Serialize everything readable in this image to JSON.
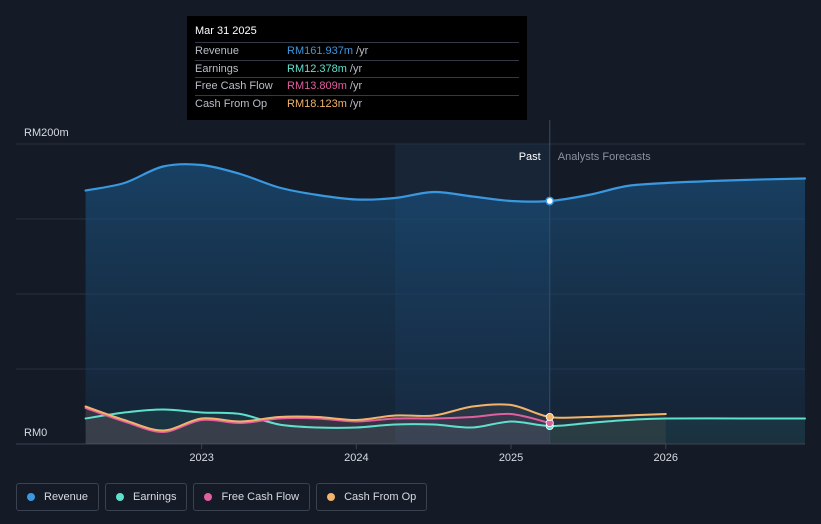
{
  "tooltip": {
    "date": "Mar 31 2025",
    "rows": [
      {
        "label": "Revenue",
        "value": "RM161.937m",
        "unit": "/yr",
        "color": "#3a98e0"
      },
      {
        "label": "Earnings",
        "value": "RM12.378m",
        "unit": "/yr",
        "color": "#5ee0cc"
      },
      {
        "label": "Free Cash Flow",
        "value": "RM13.809m",
        "unit": "/yr",
        "color": "#e05fa0"
      },
      {
        "label": "Cash From Op",
        "value": "RM18.123m",
        "unit": "/yr",
        "color": "#f2b46a"
      }
    ]
  },
  "period_labels": {
    "past": "Past",
    "forecast": "Analysts Forecasts"
  },
  "chart_data": {
    "type": "line",
    "y_axis": {
      "max_label": "RM200m",
      "min_label": "RM0",
      "ylim": [
        0,
        200
      ]
    },
    "x_ticks": [
      {
        "label": "2023",
        "x": 2023.0
      },
      {
        "label": "2024",
        "x": 2024.0
      },
      {
        "label": "2025",
        "x": 2025.0
      },
      {
        "label": "2026",
        "x": 2026.0
      }
    ],
    "xlim": [
      2021.8,
      2026.9
    ],
    "past_end": 2025.25,
    "shaded_start": 2024.25,
    "series": [
      {
        "name": "Revenue",
        "color": "#3a98e0",
        "fill": true,
        "points": [
          [
            2022.25,
            169
          ],
          [
            2022.5,
            174
          ],
          [
            2022.75,
            185
          ],
          [
            2023.0,
            186
          ],
          [
            2023.25,
            180
          ],
          [
            2023.5,
            171
          ],
          [
            2023.75,
            166
          ],
          [
            2024.0,
            163
          ],
          [
            2024.25,
            164
          ],
          [
            2024.5,
            168
          ],
          [
            2024.75,
            165
          ],
          [
            2025.0,
            162
          ],
          [
            2025.25,
            162
          ],
          [
            2025.5,
            166
          ],
          [
            2025.75,
            172
          ],
          [
            2026.0,
            174
          ],
          [
            2026.5,
            176
          ],
          [
            2026.9,
            177
          ]
        ]
      },
      {
        "name": "Earnings",
        "color": "#5ee0cc",
        "fill": false,
        "points": [
          [
            2022.25,
            17
          ],
          [
            2022.5,
            21
          ],
          [
            2022.75,
            23
          ],
          [
            2023.0,
            21
          ],
          [
            2023.25,
            20
          ],
          [
            2023.5,
            13
          ],
          [
            2023.75,
            11
          ],
          [
            2024.0,
            11
          ],
          [
            2024.25,
            13
          ],
          [
            2024.5,
            13
          ],
          [
            2024.75,
            11
          ],
          [
            2025.0,
            15
          ],
          [
            2025.25,
            12
          ],
          [
            2025.5,
            14
          ],
          [
            2025.75,
            16
          ],
          [
            2026.0,
            17
          ],
          [
            2026.5,
            17
          ],
          [
            2026.9,
            17
          ]
        ]
      },
      {
        "name": "Free Cash Flow",
        "color": "#e05fa0",
        "fill": false,
        "points": [
          [
            2022.25,
            24
          ],
          [
            2022.5,
            15
          ],
          [
            2022.75,
            8
          ],
          [
            2023.0,
            16
          ],
          [
            2023.25,
            14
          ],
          [
            2023.5,
            17
          ],
          [
            2023.75,
            17
          ],
          [
            2024.0,
            15
          ],
          [
            2024.25,
            17
          ],
          [
            2024.5,
            17
          ],
          [
            2024.75,
            18
          ],
          [
            2025.0,
            20
          ],
          [
            2025.25,
            14
          ]
        ]
      },
      {
        "name": "Cash From Op",
        "color": "#f2b46a",
        "fill": false,
        "points": [
          [
            2022.25,
            25
          ],
          [
            2022.5,
            16
          ],
          [
            2022.75,
            9
          ],
          [
            2023.0,
            17
          ],
          [
            2023.25,
            15
          ],
          [
            2023.5,
            18
          ],
          [
            2023.75,
            18
          ],
          [
            2024.0,
            16
          ],
          [
            2024.25,
            19
          ],
          [
            2024.5,
            19
          ],
          [
            2024.75,
            25
          ],
          [
            2025.0,
            26
          ],
          [
            2025.25,
            18
          ],
          [
            2025.5,
            18
          ],
          [
            2025.75,
            19
          ],
          [
            2026.0,
            20
          ]
        ]
      }
    ]
  },
  "legend": [
    {
      "label": "Revenue",
      "color": "#3a98e0"
    },
    {
      "label": "Earnings",
      "color": "#5ee0cc"
    },
    {
      "label": "Free Cash Flow",
      "color": "#e05fa0"
    },
    {
      "label": "Cash From Op",
      "color": "#f2b46a"
    }
  ]
}
